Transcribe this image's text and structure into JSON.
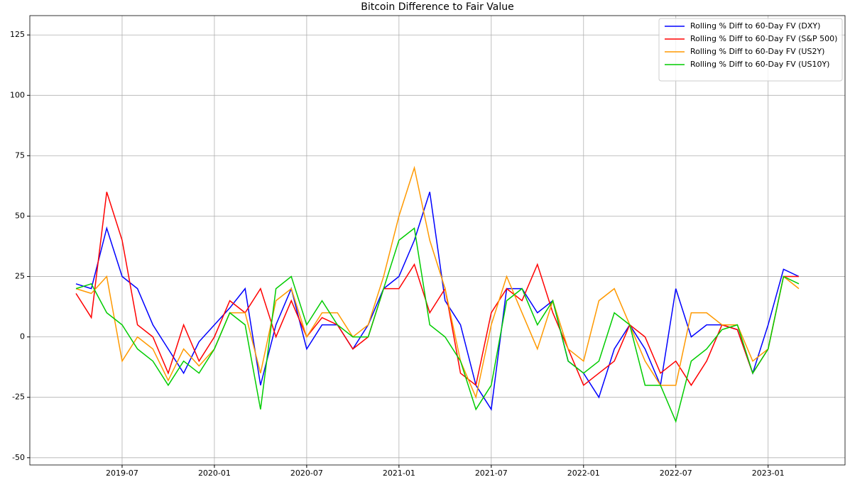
{
  "chart_data": {
    "type": "line",
    "title": "Bitcoin Difference to Fair Value",
    "x": [
      "2019-04",
      "2019-05",
      "2019-06",
      "2019-07",
      "2019-08",
      "2019-09",
      "2019-10",
      "2019-11",
      "2019-12",
      "2020-01",
      "2020-02",
      "2020-03",
      "2020-04",
      "2020-05",
      "2020-06",
      "2020-07",
      "2020-08",
      "2020-09",
      "2020-10",
      "2020-11",
      "2020-12",
      "2021-01",
      "2021-02",
      "2021-03",
      "2021-04",
      "2021-05",
      "2021-06",
      "2021-07",
      "2021-08",
      "2021-09",
      "2021-10",
      "2021-11",
      "2021-12",
      "2022-01",
      "2022-02",
      "2022-03",
      "2022-04",
      "2022-05",
      "2022-06",
      "2022-07",
      "2022-08",
      "2022-09",
      "2022-10",
      "2022-11",
      "2022-12",
      "2023-01",
      "2023-02",
      "2023-03"
    ],
    "series": [
      {
        "name": "Rolling % Diff to 60-Day FV (DXY)",
        "color": "#0000ff",
        "values": [
          22,
          20,
          45,
          25,
          20,
          5,
          -5,
          -15,
          -2,
          5,
          12,
          20,
          -20,
          5,
          20,
          -5,
          5,
          5,
          -5,
          5,
          20,
          25,
          40,
          60,
          15,
          5,
          -20,
          -30,
          20,
          20,
          10,
          15,
          -10,
          -15,
          -25,
          -5,
          5,
          -5,
          -20,
          20,
          0,
          5,
          5,
          3,
          -15,
          5,
          28,
          25
        ]
      },
      {
        "name": "Rolling % Diff to 60-Day FV (S&P 500)",
        "color": "#ff0000",
        "values": [
          18,
          8,
          60,
          40,
          5,
          0,
          -15,
          5,
          -10,
          0,
          15,
          10,
          20,
          0,
          15,
          0,
          8,
          5,
          -5,
          0,
          20,
          20,
          30,
          10,
          20,
          -15,
          -20,
          10,
          20,
          15,
          30,
          10,
          -5,
          -20,
          -15,
          -10,
          5,
          0,
          -15,
          -10,
          -20,
          -10,
          5,
          3,
          -15,
          -5,
          25,
          25
        ]
      },
      {
        "name": "Rolling % Diff to 60-Day FV (US2Y)",
        "color": "#ff9900",
        "values": [
          20,
          18,
          25,
          -10,
          0,
          -5,
          -18,
          -5,
          -12,
          -5,
          10,
          10,
          -15,
          15,
          20,
          0,
          10,
          10,
          0,
          5,
          25,
          50,
          70,
          40,
          20,
          -10,
          -25,
          5,
          25,
          10,
          -5,
          15,
          -5,
          -10,
          15,
          20,
          5,
          -10,
          -20,
          -20,
          10,
          10,
          5,
          5,
          -10,
          -5,
          25,
          20
        ]
      },
      {
        "name": "Rolling % Diff to 60-Day FV (US10Y)",
        "color": "#00cc00",
        "values": [
          20,
          22,
          10,
          5,
          -5,
          -10,
          -20,
          -10,
          -15,
          -5,
          10,
          5,
          -30,
          20,
          25,
          5,
          15,
          5,
          0,
          0,
          20,
          40,
          45,
          5,
          0,
          -10,
          -30,
          -20,
          15,
          20,
          5,
          15,
          -10,
          -15,
          -10,
          10,
          5,
          -20,
          -20,
          -35,
          -10,
          -5,
          3,
          5,
          -15,
          -5,
          25,
          22
        ]
      }
    ],
    "xlim": [
      "2019-01",
      "2023-06"
    ],
    "xticks": [
      "2019-07",
      "2020-01",
      "2020-07",
      "2021-01",
      "2021-07",
      "2022-01",
      "2022-07",
      "2023-01"
    ],
    "ylim": [
      -53,
      133
    ],
    "yticks": [
      -50,
      -25,
      0,
      25,
      50,
      75,
      100,
      125
    ],
    "grid": true,
    "legend": "upper-right"
  }
}
